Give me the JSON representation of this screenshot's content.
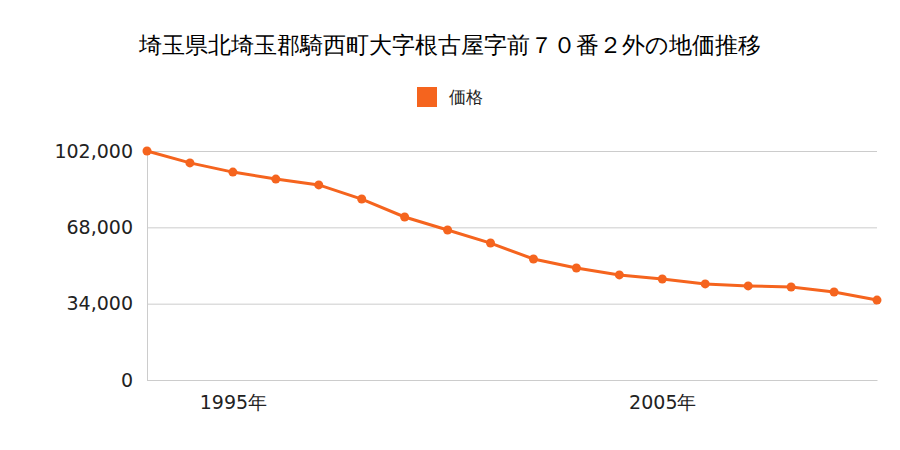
{
  "chart_data": {
    "type": "line",
    "title": "埼玉県北埼玉郡騎西町大字根古屋字前７０番２外の地価推移",
    "x": [
      1993,
      1994,
      1995,
      1996,
      1997,
      1998,
      1999,
      2000,
      2001,
      2002,
      2003,
      2004,
      2005,
      2006,
      2007,
      2008,
      2009,
      2010
    ],
    "series": [
      {
        "name": "価格",
        "color": "#f5641e",
        "marker": "circle",
        "values": [
          102000,
          96700,
          92600,
          89500,
          86900,
          80600,
          72600,
          66800,
          61000,
          53900,
          49900,
          46800,
          45000,
          42800,
          41900,
          41400,
          39200,
          35600
        ]
      }
    ],
    "xlim": [
      1993,
      2010
    ],
    "xticks": [
      {
        "value": 1995,
        "label": "1995年"
      },
      {
        "value": 2005,
        "label": "2005年"
      }
    ],
    "ylim": [
      0,
      102000
    ],
    "yticks": [
      0,
      {
        "value": 34000,
        "label": "34,000"
      },
      {
        "value": 68000,
        "label": "68,000"
      },
      {
        "value": 102000,
        "label": "102,000"
      }
    ],
    "grid": true,
    "legend": "top"
  }
}
